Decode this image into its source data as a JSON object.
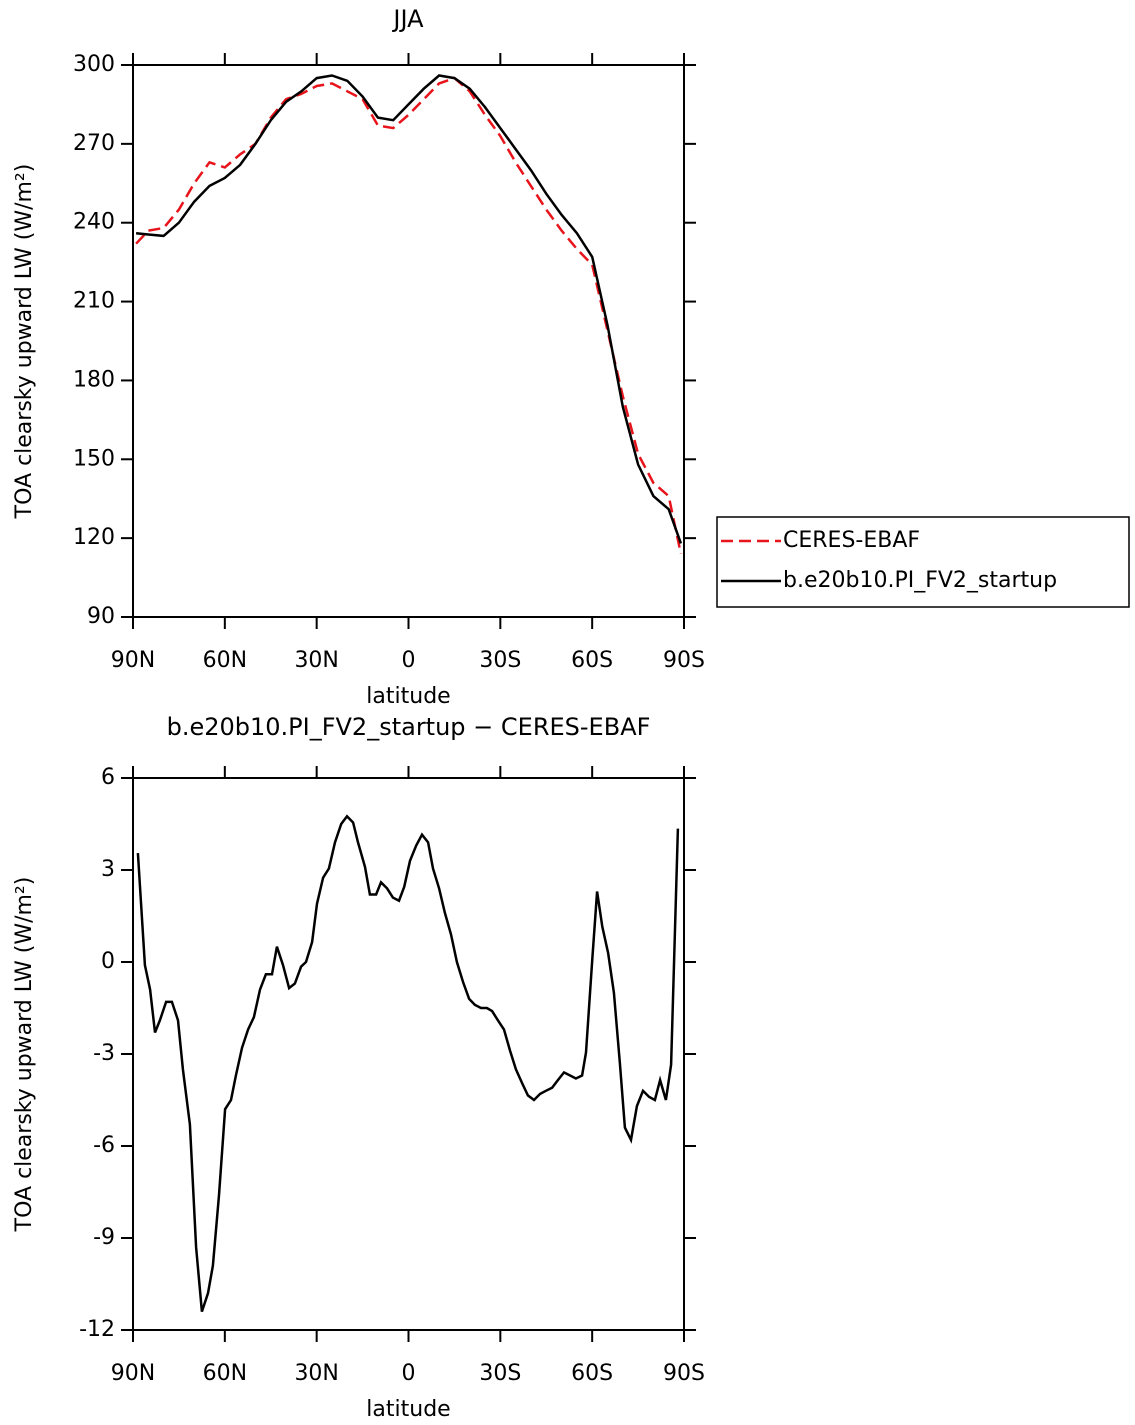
{
  "chart_data": [
    {
      "type": "line",
      "title": "JJA",
      "x_label": "latitude",
      "y_label": "TOA clearsky upward LW (W/m²)",
      "x": [
        89,
        85,
        80,
        75,
        70,
        65,
        60,
        55,
        50,
        45,
        40,
        35,
        30,
        25,
        20,
        15,
        10,
        5,
        0,
        -5,
        -10,
        -15,
        -20,
        -25,
        -30,
        -35,
        -40,
        -45,
        -50,
        -55,
        -60,
        -65,
        -70,
        -75,
        -80,
        -85,
        -89
      ],
      "series": [
        {
          "name": "CERES-EBAF",
          "color": "#e8141c",
          "line_style": "dashed",
          "values": [
            232,
            237,
            238,
            245,
            255,
            263,
            261,
            266,
            270,
            280,
            287,
            289,
            292,
            293,
            290,
            287,
            277,
            276,
            281,
            287,
            293,
            295,
            290,
            281,
            273,
            263,
            254,
            245,
            237,
            230,
            224,
            199,
            174,
            152,
            141,
            136,
            114
          ]
        },
        {
          "name": "b.e20b10.PI_FV2_startup",
          "color": "#000000",
          "line_style": "solid",
          "values": [
            236,
            235.5,
            235,
            240,
            248,
            254,
            257,
            262,
            270,
            279,
            286,
            290,
            295,
            296,
            294,
            288,
            280,
            279,
            285,
            291,
            296,
            295,
            291,
            284,
            276,
            268,
            260,
            251,
            243,
            236,
            227,
            201,
            170,
            148,
            136,
            131,
            118
          ]
        }
      ],
      "xlim": [
        90,
        -90
      ],
      "xticks": [
        {
          "value": 90,
          "label": "90N"
        },
        {
          "value": 60,
          "label": "60N"
        },
        {
          "value": 30,
          "label": "30N"
        },
        0,
        {
          "value": -30,
          "label": "30S"
        },
        {
          "value": -60,
          "label": "60S"
        },
        {
          "value": -90,
          "label": "90S"
        }
      ],
      "ylim": [
        90,
        300
      ],
      "yticks": [
        90,
        120,
        150,
        180,
        210,
        240,
        270,
        300
      ],
      "legend": "right"
    },
    {
      "type": "line",
      "title": "b.e20b10.PI_FV2_startup − CERES-EBAF",
      "x_label": "latitude",
      "y_label": "TOA clearsky upward LW (W/m²)",
      "x": [
        88.4,
        86.1,
        84.4,
        82.8,
        81.2,
        79.2,
        77.3,
        75.3,
        73.7,
        71.4,
        69.4,
        67.5,
        65.5,
        63.9,
        61.9,
        59.9,
        58.0,
        56.4,
        54.4,
        52.4,
        50.5,
        48.5,
        46.6,
        44.6,
        43.0,
        41.0,
        39.0,
        37.1,
        35.1,
        33.5,
        31.5,
        29.9,
        27.9,
        26.0,
        24.0,
        22.0,
        20.1,
        18.1,
        16.5,
        14.2,
        12.6,
        10.6,
        9.0,
        7.0,
        5.1,
        3.1,
        1.4,
        -0.5,
        -2.5,
        -4.4,
        -6.4,
        -8.0,
        -10.0,
        -11.9,
        -13.9,
        -15.8,
        -17.8,
        -19.8,
        -21.7,
        -23.7,
        -25.6,
        -27.3,
        -29.2,
        -31.2,
        -33.2,
        -35.1,
        -37.1,
        -39.0,
        -41.0,
        -43.0,
        -44.9,
        -46.9,
        -48.8,
        -50.8,
        -52.8,
        -54.7,
        -56.7,
        -58.0,
        -60.0,
        -61.6,
        -63.3,
        -65.2,
        -67.1,
        -69.1,
        -70.7,
        -72.7,
        -74.6,
        -76.6,
        -78.6,
        -80.5,
        -82.2,
        -84.1,
        -85.8,
        -88.0
      ],
      "values": [
        3.55,
        -0.1,
        -0.9,
        -2.3,
        -1.9,
        -1.3,
        -1.3,
        -1.9,
        -3.5,
        -5.3,
        -9.3,
        -11.4,
        -10.8,
        -9.9,
        -7.6,
        -4.8,
        -4.5,
        -3.7,
        -2.8,
        -2.2,
        -1.8,
        -0.9,
        -0.4,
        -0.4,
        0.5,
        -0.1,
        -0.85,
        -0.7,
        -0.15,
        0,
        0.65,
        1.9,
        2.75,
        3.05,
        3.9,
        4.5,
        4.75,
        4.55,
        3.9,
        3.1,
        2.2,
        2.2,
        2.6,
        2.4,
        2.1,
        2.0,
        2.45,
        3.3,
        3.8,
        4.15,
        3.9,
        3.05,
        2.4,
        1.6,
        0.9,
        0.0,
        -0.65,
        -1.2,
        -1.4,
        -1.5,
        -1.5,
        -1.6,
        -1.9,
        -2.2,
        -2.9,
        -3.5,
        -3.95,
        -4.35,
        -4.5,
        -4.3,
        -4.2,
        -4.1,
        -3.85,
        -3.6,
        -3.7,
        -3.8,
        -3.7,
        -2.95,
        0.05,
        2.3,
        1.15,
        0.3,
        -1.0,
        -3.35,
        -5.4,
        -5.8,
        -4.7,
        -4.2,
        -4.4,
        -4.5,
        -3.85,
        -4.5,
        -3.35,
        4.35
      ],
      "color": "#000000",
      "xlim": [
        90,
        -90
      ],
      "xticks": [
        {
          "value": 90,
          "label": "90N"
        },
        {
          "value": 60,
          "label": "60N"
        },
        {
          "value": 30,
          "label": "30N"
        },
        0,
        {
          "value": -30,
          "label": "30S"
        },
        {
          "value": -60,
          "label": "60S"
        },
        {
          "value": -90,
          "label": "90S"
        }
      ],
      "ylim": [
        -12,
        6
      ],
      "yticks": [
        -12,
        -9,
        -6,
        -3,
        0,
        3,
        6
      ]
    }
  ]
}
